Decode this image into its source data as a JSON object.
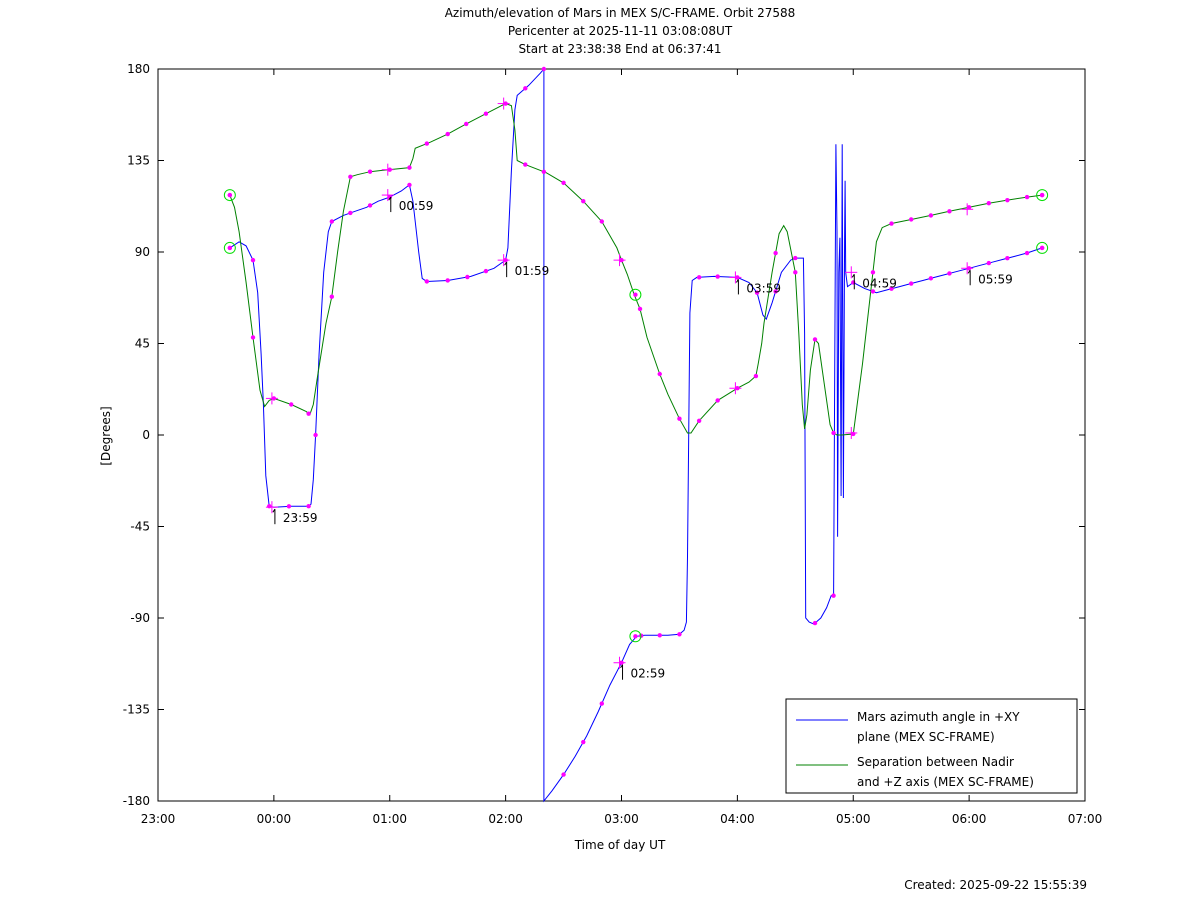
{
  "chart_data": {
    "type": "line",
    "title_lines": [
      "Azimuth/elevation of Mars in MEX S/C-FRAME.  Orbit 27588",
      "Pericenter at 2025-11-11 03:08:08UT",
      "Start at 23:38:38 End at 06:37:41"
    ],
    "xlabel": "Time of day UT",
    "ylabel": "[Degrees]",
    "x_unit": "hours past 23:00 UT",
    "xlim": [
      0,
      8
    ],
    "ylim": [
      -180,
      180
    ],
    "x_ticks": [
      {
        "value": 0,
        "label": "23:00"
      },
      {
        "value": 1,
        "label": "00:00"
      },
      {
        "value": 2,
        "label": "01:00"
      },
      {
        "value": 3,
        "label": "02:00"
      },
      {
        "value": 4,
        "label": "03:00"
      },
      {
        "value": 5,
        "label": "04:00"
      },
      {
        "value": 6,
        "label": "05:00"
      },
      {
        "value": 7,
        "label": "06:00"
      },
      {
        "value": 8,
        "label": "07:00"
      }
    ],
    "y_ticks": [
      {
        "value": 180,
        "label": "180"
      },
      {
        "value": 135,
        "label": "135"
      },
      {
        "value": 90,
        "label": "90"
      },
      {
        "value": 45,
        "label": "45"
      },
      {
        "value": 0,
        "label": "0"
      },
      {
        "value": -45,
        "label": "-45"
      },
      {
        "value": -90,
        "label": "-90"
      },
      {
        "value": -135,
        "label": "-135"
      },
      {
        "value": -180,
        "label": "-180"
      }
    ],
    "legend_position": "bottom-right",
    "series": [
      {
        "name_lines": [
          "Mars azimuth angle in +XY",
          "plane (MEX SC-FRAME)"
        ],
        "color": "#0000ff",
        "points": [
          [
            0.62,
            92
          ],
          [
            0.7,
            95
          ],
          [
            0.76,
            93
          ],
          [
            0.82,
            86
          ],
          [
            0.86,
            70
          ],
          [
            0.89,
            40
          ],
          [
            0.91,
            15
          ],
          [
            0.93,
            -20
          ],
          [
            0.96,
            -35
          ],
          [
            1.0,
            -35.5
          ],
          [
            1.15,
            -35
          ],
          [
            1.3,
            -35
          ],
          [
            1.32,
            -34
          ],
          [
            1.34,
            -22
          ],
          [
            1.36,
            0
          ],
          [
            1.39,
            40
          ],
          [
            1.43,
            80
          ],
          [
            1.47,
            100
          ],
          [
            1.5,
            105
          ],
          [
            1.6,
            108
          ],
          [
            1.7,
            110
          ],
          [
            1.8,
            112
          ],
          [
            1.9,
            115
          ],
          [
            2.0,
            117
          ],
          [
            2.1,
            120
          ],
          [
            2.17,
            123
          ],
          [
            2.2,
            115
          ],
          [
            2.25,
            90
          ],
          [
            2.28,
            77
          ],
          [
            2.32,
            75.5
          ],
          [
            2.5,
            76
          ],
          [
            2.7,
            78
          ],
          [
            2.9,
            82
          ],
          [
            3.0,
            86
          ],
          [
            3.02,
            92
          ],
          [
            3.05,
            130
          ],
          [
            3.08,
            160
          ],
          [
            3.1,
            167
          ],
          [
            3.2,
            172
          ],
          [
            3.3,
            178
          ],
          [
            3.33,
            180
          ],
          [
            3.33,
            -180
          ],
          [
            3.4,
            -175
          ],
          [
            3.5,
            -167
          ],
          [
            3.6,
            -158
          ],
          [
            3.7,
            -148
          ],
          [
            3.8,
            -136
          ],
          [
            3.9,
            -123
          ],
          [
            4.0,
            -112
          ],
          [
            4.07,
            -103
          ],
          [
            4.13,
            -99
          ],
          [
            4.2,
            -98.5
          ],
          [
            4.4,
            -98.5
          ],
          [
            4.5,
            -98
          ],
          [
            4.54,
            -96
          ],
          [
            4.56,
            -92
          ],
          [
            4.57,
            -60
          ],
          [
            4.58,
            0
          ],
          [
            4.59,
            60
          ],
          [
            4.61,
            76
          ],
          [
            4.65,
            77.5
          ],
          [
            4.8,
            78
          ],
          [
            5.0,
            77.5
          ],
          [
            5.1,
            75
          ],
          [
            5.17,
            70
          ],
          [
            5.22,
            59
          ],
          [
            5.25,
            57
          ],
          [
            5.3,
            65
          ],
          [
            5.38,
            80
          ],
          [
            5.46,
            86
          ],
          [
            5.5,
            87
          ],
          [
            5.57,
            87
          ],
          [
            5.58,
            50
          ],
          [
            5.59,
            -90
          ],
          [
            5.62,
            -92
          ],
          [
            5.66,
            -93
          ],
          [
            5.72,
            -90
          ],
          [
            5.77,
            -85
          ],
          [
            5.81,
            -79
          ],
          [
            5.83,
            -79
          ],
          [
            5.84,
            30
          ],
          [
            5.85,
            143
          ],
          [
            5.86,
            100
          ],
          [
            5.865,
            -50
          ],
          [
            5.875,
            80
          ],
          [
            5.885,
            97
          ],
          [
            5.895,
            -30
          ],
          [
            5.905,
            143
          ],
          [
            5.915,
            -31
          ],
          [
            5.925,
            97
          ],
          [
            5.93,
            125
          ],
          [
            5.935,
            80
          ],
          [
            5.95,
            73
          ],
          [
            6.0,
            75
          ],
          [
            6.1,
            72
          ],
          [
            6.2,
            70
          ],
          [
            6.3,
            71.5
          ],
          [
            6.4,
            73
          ],
          [
            6.5,
            74.5
          ],
          [
            6.6,
            76
          ],
          [
            6.7,
            77.5
          ],
          [
            6.8,
            79
          ],
          [
            6.9,
            80.5
          ],
          [
            7.0,
            82
          ],
          [
            7.1,
            83.5
          ],
          [
            7.2,
            85
          ],
          [
            7.3,
            86.5
          ],
          [
            7.4,
            88
          ],
          [
            7.5,
            89.5
          ],
          [
            7.63,
            92
          ]
        ],
        "markers_x": [
          0.62,
          0.82,
          0.96,
          1.13,
          1.3,
          1.36,
          1.5,
          1.66,
          1.83,
          2.0,
          2.17,
          2.32,
          2.5,
          2.67,
          2.83,
          3.0,
          3.17,
          3.33,
          3.5,
          3.67,
          3.83,
          4.0,
          4.17,
          4.33,
          4.5,
          4.67,
          4.83,
          5.0,
          5.17,
          5.33,
          5.5,
          5.67,
          5.83,
          6.0,
          6.17,
          6.33,
          6.5,
          6.67,
          6.83,
          7.0,
          7.17,
          7.33,
          7.5,
          7.63
        ]
      },
      {
        "name_lines": [
          "Separation between Nadir",
          "and +Z axis (MEX SC-FRAME)"
        ],
        "color": "#008000",
        "points": [
          [
            0.62,
            118
          ],
          [
            0.66,
            112
          ],
          [
            0.7,
            100
          ],
          [
            0.76,
            75
          ],
          [
            0.82,
            48
          ],
          [
            0.88,
            22
          ],
          [
            0.92,
            14
          ],
          [
            0.96,
            17
          ],
          [
            1.0,
            18
          ],
          [
            1.15,
            15
          ],
          [
            1.28,
            11.5
          ],
          [
            1.31,
            10
          ],
          [
            1.34,
            15
          ],
          [
            1.38,
            30
          ],
          [
            1.45,
            55
          ],
          [
            1.5,
            68
          ],
          [
            1.55,
            90
          ],
          [
            1.6,
            110
          ],
          [
            1.66,
            127
          ],
          [
            1.72,
            128
          ],
          [
            1.83,
            129.5
          ],
          [
            2.0,
            130.5
          ],
          [
            2.17,
            131.5
          ],
          [
            2.2,
            136
          ],
          [
            2.22,
            141
          ],
          [
            2.35,
            144
          ],
          [
            2.5,
            148
          ],
          [
            2.66,
            153
          ],
          [
            2.83,
            158
          ],
          [
            3.0,
            163
          ],
          [
            3.05,
            162
          ],
          [
            3.08,
            150
          ],
          [
            3.1,
            135
          ],
          [
            3.17,
            133
          ],
          [
            3.35,
            129
          ],
          [
            3.5,
            124
          ],
          [
            3.67,
            115
          ],
          [
            3.83,
            105
          ],
          [
            3.96,
            92
          ],
          [
            4.0,
            86
          ],
          [
            4.05,
            79
          ],
          [
            4.11,
            69
          ],
          [
            4.16,
            62
          ],
          [
            4.22,
            48
          ],
          [
            4.33,
            30
          ],
          [
            4.4,
            20
          ],
          [
            4.5,
            8
          ],
          [
            4.57,
            1
          ],
          [
            4.6,
            1
          ],
          [
            4.67,
            7
          ],
          [
            4.83,
            17
          ],
          [
            5.0,
            23
          ],
          [
            5.1,
            26
          ],
          [
            5.16,
            29
          ],
          [
            5.18,
            35
          ],
          [
            5.21,
            45
          ],
          [
            5.23,
            55
          ],
          [
            5.3,
            80
          ],
          [
            5.36,
            99
          ],
          [
            5.4,
            103
          ],
          [
            5.43,
            100
          ],
          [
            5.5,
            80
          ],
          [
            5.53,
            50
          ],
          [
            5.56,
            15
          ],
          [
            5.58,
            3
          ],
          [
            5.6,
            10
          ],
          [
            5.63,
            32
          ],
          [
            5.67,
            47
          ],
          [
            5.7,
            45
          ],
          [
            5.75,
            25
          ],
          [
            5.8,
            5
          ],
          [
            5.83,
            1
          ],
          [
            5.86,
            0
          ],
          [
            5.9,
            0
          ],
          [
            6.0,
            0.5
          ],
          [
            6.08,
            35
          ],
          [
            6.15,
            70
          ],
          [
            6.2,
            95
          ],
          [
            6.25,
            102
          ],
          [
            6.33,
            104
          ],
          [
            6.5,
            106
          ],
          [
            6.67,
            108
          ],
          [
            6.83,
            110
          ],
          [
            7.0,
            112
          ],
          [
            7.17,
            114
          ],
          [
            7.33,
            115.5
          ],
          [
            7.5,
            117
          ],
          [
            7.63,
            118
          ]
        ],
        "markers_x": [
          0.62,
          0.82,
          1.0,
          1.15,
          1.3,
          1.5,
          1.66,
          1.83,
          2.0,
          2.17,
          2.32,
          2.5,
          2.66,
          2.83,
          3.0,
          3.17,
          3.33,
          3.5,
          3.67,
          3.83,
          4.0,
          4.16,
          4.33,
          4.5,
          4.67,
          4.83,
          5.0,
          5.16,
          5.33,
          5.5,
          5.67,
          5.83,
          6.0,
          6.17,
          6.33,
          6.5,
          6.67,
          6.83,
          7.0,
          7.17,
          7.33,
          7.5,
          7.63
        ]
      }
    ],
    "circle_markers": [
      {
        "x": 0.62,
        "y": 118
      },
      {
        "x": 0.62,
        "y": 92
      },
      {
        "x": 4.12,
        "y": 69
      },
      {
        "x": 4.12,
        "y": -99
      },
      {
        "x": 7.63,
        "y": 118
      },
      {
        "x": 7.63,
        "y": 92
      }
    ],
    "hour_annotations": [
      {
        "x": 0.983,
        "label": "23:59",
        "cross_y": [
          -35.5,
          18
        ]
      },
      {
        "x": 1.983,
        "label": "00:59",
        "cross_y": [
          118,
          130.5
        ]
      },
      {
        "x": 2.983,
        "label": "01:59",
        "cross_y": [
          86,
          163
        ]
      },
      {
        "x": 3.983,
        "label": "02:59",
        "cross_y": [
          -112,
          86
        ]
      },
      {
        "x": 4.983,
        "label": "03:59",
        "cross_y": [
          77.5,
          23
        ]
      },
      {
        "x": 5.983,
        "label": "04:59",
        "cross_y": [
          80,
          1
        ]
      },
      {
        "x": 6.983,
        "label": "05:59",
        "cross_y": [
          82,
          111
        ]
      }
    ],
    "footer": "Created: 2025-09-22 15:55:39"
  }
}
